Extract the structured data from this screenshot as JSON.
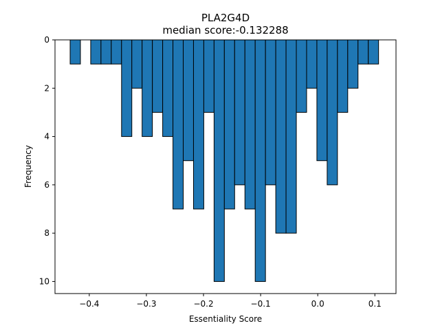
{
  "chart_data": {
    "type": "bar",
    "title": "PLA2G4D",
    "subtitle": "median score:-0.132288",
    "xlabel": "Essentiality Score",
    "ylabel": "Frequency",
    "xlim": [
      -0.46,
      0.137
    ],
    "ylim": [
      10.5,
      0
    ],
    "y_inverted": true,
    "grid": false,
    "bar_color": "#1f77b4",
    "edge_color": "#000000",
    "bin_width": 0.018,
    "bin_starts": [
      -0.4335,
      -0.3975,
      -0.3795,
      -0.3615,
      -0.3435,
      -0.3255,
      -0.3075,
      -0.2895,
      -0.2715,
      -0.2535,
      -0.2355,
      -0.2175,
      -0.1995,
      -0.1815,
      -0.1635,
      -0.1455,
      -0.1275,
      -0.1095,
      -0.0915,
      -0.0735,
      -0.0555,
      -0.0375,
      -0.0195,
      -0.0015,
      0.0165,
      0.0345,
      0.0525,
      0.0705,
      0.0885
    ],
    "values": [
      1,
      1,
      1,
      1,
      4,
      2,
      4,
      3,
      4,
      7,
      5,
      7,
      3,
      10,
      7,
      6,
      7,
      10,
      6,
      8,
      8,
      3,
      2,
      5,
      6,
      3,
      2,
      1,
      1
    ],
    "x_ticks": [
      -0.4,
      -0.3,
      -0.2,
      -0.1,
      0.0,
      0.1
    ],
    "x_tick_labels": [
      "−0.4",
      "−0.3",
      "−0.2",
      "−0.1",
      "0.0",
      "0.1"
    ],
    "y_ticks": [
      0,
      2,
      4,
      6,
      8,
      10
    ],
    "y_tick_labels": [
      "0",
      "2",
      "4",
      "6",
      "8",
      "10"
    ]
  }
}
